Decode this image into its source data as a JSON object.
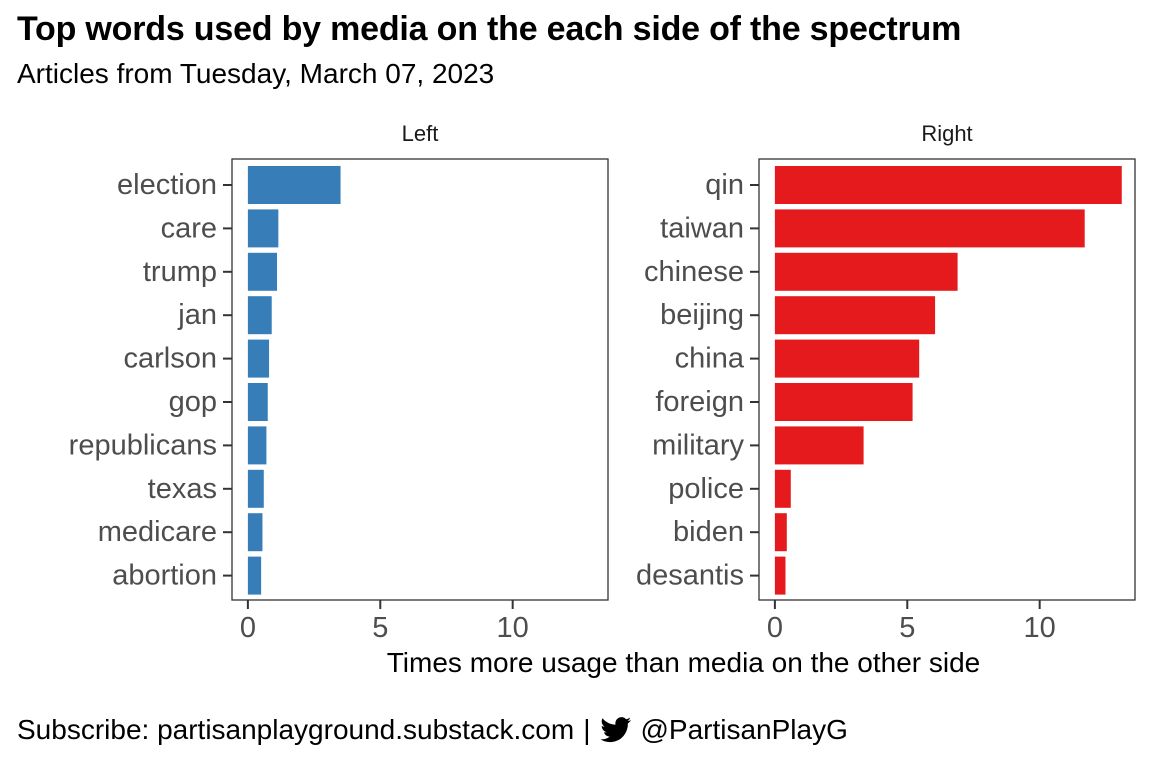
{
  "title": "Top words used by media on the each side of the spectrum",
  "subtitle": "Articles from Tuesday, March 07, 2023",
  "caption": {
    "subscribe_text": "Subscribe: partisanplayground.substack.com",
    "separator": "|",
    "icon": "twitter-bird-icon",
    "handle": "@PartisanPlayG"
  },
  "colors": {
    "left": "#377EB8",
    "right": "#E41A1C"
  },
  "chart_data": {
    "type": "bar",
    "orientation": "horizontal",
    "xlabel": "Times more usage than media on the other side",
    "xlim": [
      -0.6,
      13.6
    ],
    "xticks": [
      0,
      5,
      10
    ],
    "grid": false,
    "panels": [
      {
        "name": "Left",
        "categories": [
          "election",
          "care",
          "trump",
          "jan",
          "carlson",
          "gop",
          "republicans",
          "texas",
          "medicare",
          "abortion"
        ],
        "values": [
          3.5,
          1.15,
          1.1,
          0.9,
          0.8,
          0.75,
          0.7,
          0.6,
          0.55,
          0.5
        ]
      },
      {
        "name": "Right",
        "categories": [
          "qin",
          "taiwan",
          "chinese",
          "beijing",
          "china",
          "foreign",
          "military",
          "police",
          "biden",
          "desantis"
        ],
        "values": [
          13.1,
          11.7,
          6.9,
          6.05,
          5.45,
          5.2,
          3.35,
          0.6,
          0.45,
          0.4
        ]
      }
    ]
  }
}
